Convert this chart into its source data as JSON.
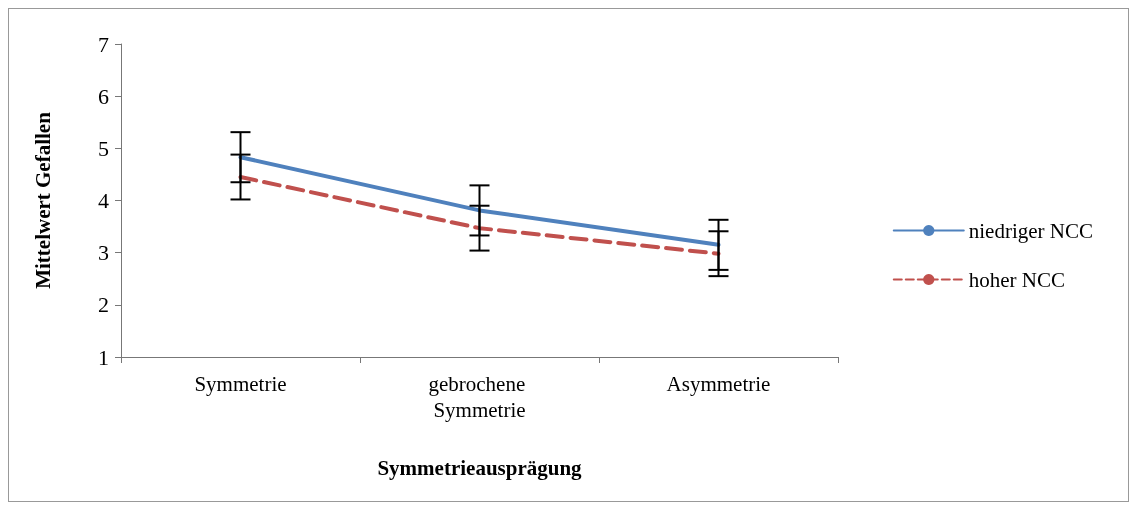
{
  "chart_data": {
    "type": "line",
    "xlabel": "Symmetrieausprägung",
    "ylabel": "Mittelwert Gefallen",
    "categories": [
      "Symmetrie",
      "gebrochene Symmetrie",
      "Asymmetrie"
    ],
    "series": [
      {
        "name": "niedriger NCC",
        "color": "#4f81bd",
        "values": [
          4.83,
          3.81,
          3.15
        ],
        "errors": [
          0.48,
          0.48,
          0.48
        ],
        "line_style": "solid"
      },
      {
        "name": "hoher NCC",
        "color": "#c0504d",
        "values": [
          4.45,
          3.47,
          2.98
        ],
        "errors": [
          0.43,
          0.43,
          0.43
        ],
        "line_style": "dashed"
      }
    ],
    "ylim": [
      1,
      7
    ],
    "yticks": [
      1,
      2,
      3,
      4,
      5,
      6,
      7
    ],
    "grid": false,
    "legend": "right",
    "marker": "none"
  }
}
